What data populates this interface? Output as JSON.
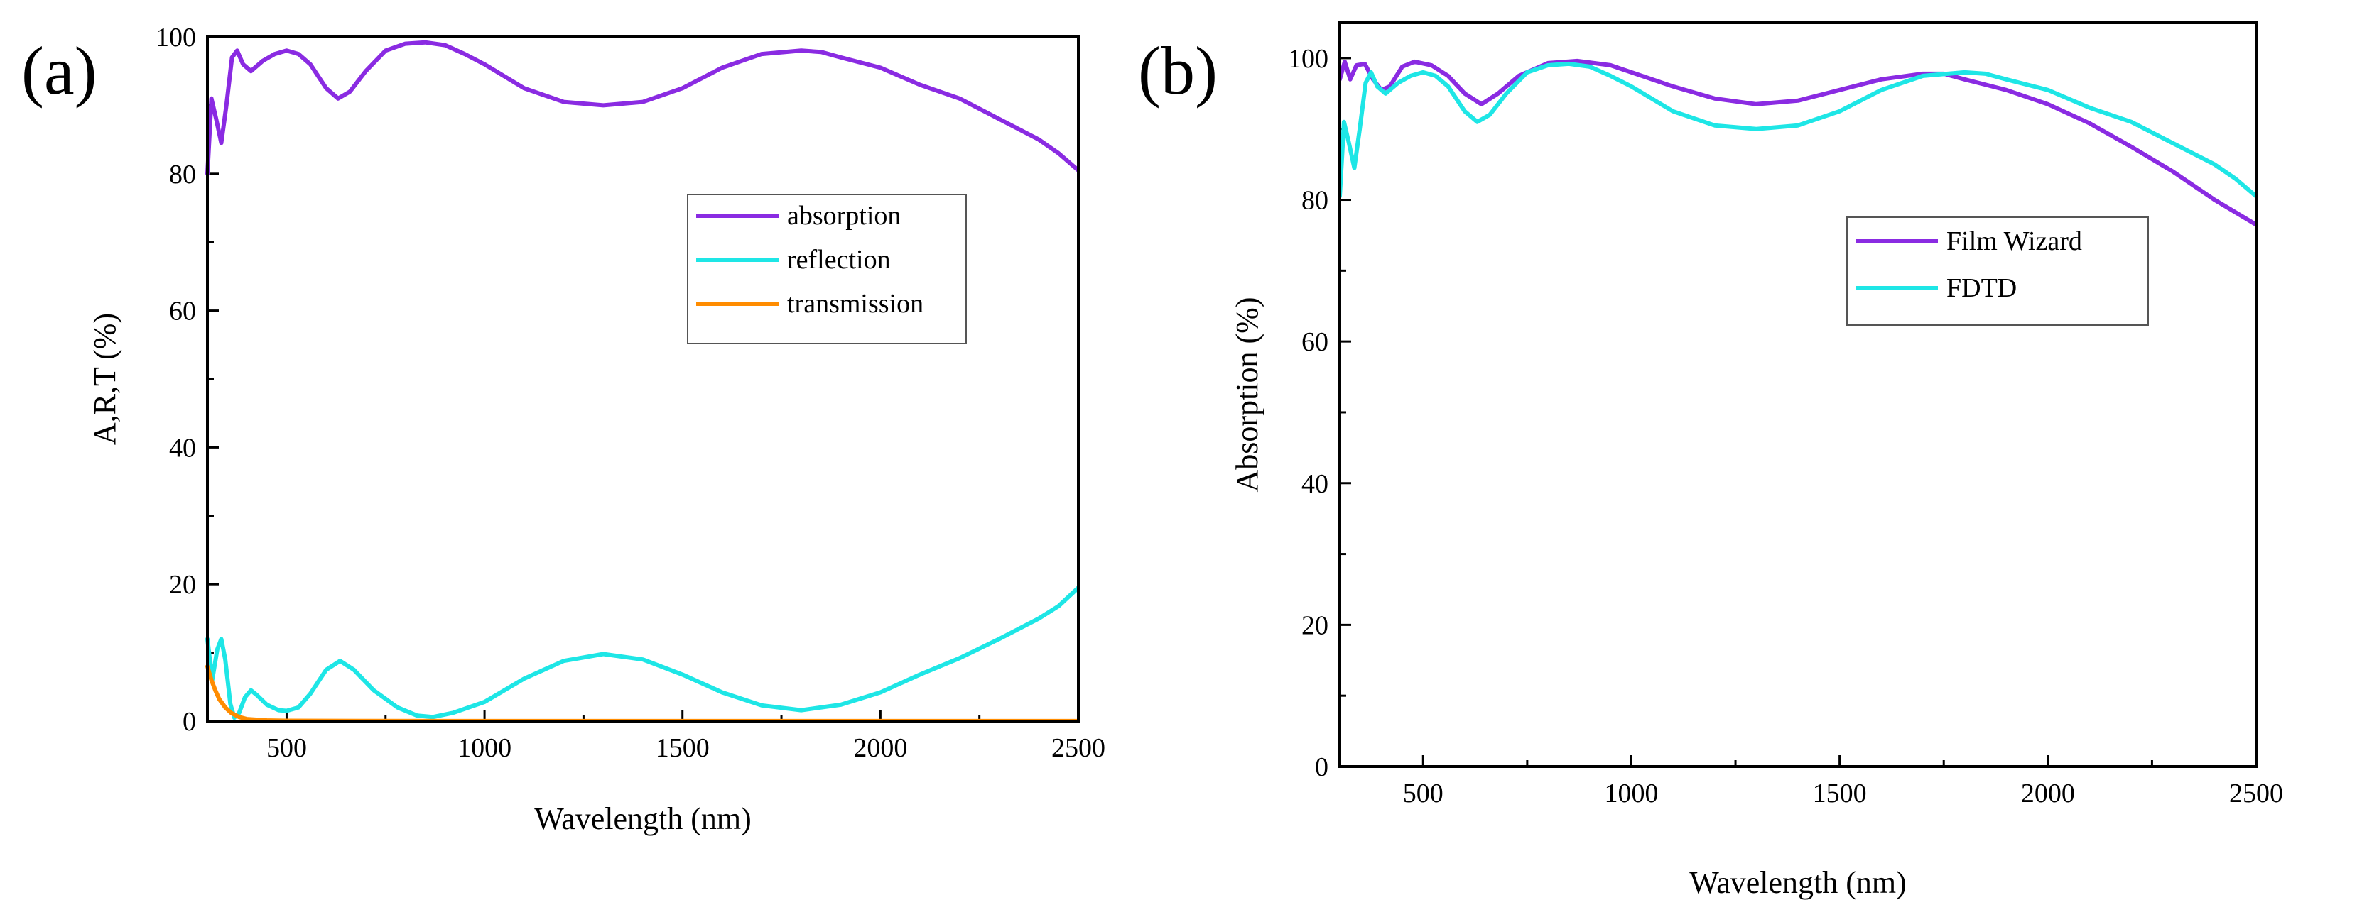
{
  "chart_data": [
    {
      "type": "line",
      "panel_label": "(a)",
      "title": "",
      "xlabel": "Wavelength (nm)",
      "ylabel": "A,R,T (%)",
      "xlim": [
        300,
        2500
      ],
      "ylim": [
        0,
        100
      ],
      "xticks": [
        500,
        1000,
        1500,
        2000,
        2500
      ],
      "yticks": [
        0,
        20,
        40,
        60,
        80,
        100
      ],
      "legend_position": "center-right",
      "series": [
        {
          "name": "absorption",
          "color": "#8a2be2",
          "points": [
            [
              300,
              80
            ],
            [
              310,
              91
            ],
            [
              322,
              88
            ],
            [
              335,
              84.5
            ],
            [
              348,
              90
            ],
            [
              362,
              97
            ],
            [
              375,
              98
            ],
            [
              390,
              96
            ],
            [
              410,
              95
            ],
            [
              440,
              96.5
            ],
            [
              470,
              97.5
            ],
            [
              500,
              98
            ],
            [
              530,
              97.5
            ],
            [
              560,
              96
            ],
            [
              600,
              92.5
            ],
            [
              630,
              91
            ],
            [
              660,
              92
            ],
            [
              700,
              95
            ],
            [
              750,
              98
            ],
            [
              800,
              99
            ],
            [
              850,
              99.2
            ],
            [
              900,
              98.8
            ],
            [
              950,
              97.5
            ],
            [
              1000,
              96
            ],
            [
              1100,
              92.5
            ],
            [
              1200,
              90.5
            ],
            [
              1300,
              90
            ],
            [
              1400,
              90.5
            ],
            [
              1500,
              92.5
            ],
            [
              1600,
              95.5
            ],
            [
              1700,
              97.5
            ],
            [
              1800,
              98
            ],
            [
              1850,
              97.8
            ],
            [
              1900,
              97
            ],
            [
              2000,
              95.5
            ],
            [
              2100,
              93
            ],
            [
              2200,
              91
            ],
            [
              2300,
              88
            ],
            [
              2400,
              85
            ],
            [
              2450,
              83
            ],
            [
              2500,
              80.5
            ]
          ]
        },
        {
          "name": "reflection",
          "color": "#1ee6e6",
          "points": [
            [
              300,
              12
            ],
            [
              312,
              6
            ],
            [
              325,
              10.5
            ],
            [
              335,
              12
            ],
            [
              345,
              9
            ],
            [
              358,
              2.5
            ],
            [
              368,
              0.5
            ],
            [
              380,
              1.2
            ],
            [
              395,
              3.5
            ],
            [
              410,
              4.5
            ],
            [
              425,
              3.8
            ],
            [
              450,
              2.4
            ],
            [
              480,
              1.6
            ],
            [
              500,
              1.5
            ],
            [
              530,
              2
            ],
            [
              560,
              4
            ],
            [
              600,
              7.5
            ],
            [
              635,
              8.8
            ],
            [
              670,
              7.5
            ],
            [
              720,
              4.5
            ],
            [
              780,
              2
            ],
            [
              830,
              0.8
            ],
            [
              870,
              0.6
            ],
            [
              920,
              1.2
            ],
            [
              1000,
              2.8
            ],
            [
              1100,
              6.2
            ],
            [
              1200,
              8.8
            ],
            [
              1300,
              9.8
            ],
            [
              1400,
              9
            ],
            [
              1500,
              6.8
            ],
            [
              1600,
              4.2
            ],
            [
              1700,
              2.3
            ],
            [
              1800,
              1.6
            ],
            [
              1900,
              2.4
            ],
            [
              2000,
              4.2
            ],
            [
              2100,
              6.8
            ],
            [
              2200,
              9.2
            ],
            [
              2300,
              12
            ],
            [
              2400,
              15
            ],
            [
              2450,
              16.8
            ],
            [
              2500,
              19.5
            ]
          ]
        },
        {
          "name": "transmission",
          "color": "#ff8c00",
          "points": [
            [
              300,
              8
            ],
            [
              310,
              6
            ],
            [
              320,
              4.5
            ],
            [
              330,
              3.2
            ],
            [
              345,
              2
            ],
            [
              360,
              1.2
            ],
            [
              380,
              0.6
            ],
            [
              400,
              0.3
            ],
            [
              450,
              0.1
            ],
            [
              500,
              0.05
            ],
            [
              700,
              0.02
            ],
            [
              1000,
              0.01
            ],
            [
              1500,
              0.01
            ],
            [
              2000,
              0.01
            ],
            [
              2500,
              0.01
            ]
          ]
        }
      ]
    },
    {
      "type": "line",
      "panel_label": "(b)",
      "title": "",
      "xlabel": "Wavelength (nm)",
      "ylabel": "Absorption (%)",
      "xlim": [
        300,
        2500
      ],
      "ylim": [
        0,
        105
      ],
      "xticks": [
        500,
        1000,
        1500,
        2000,
        2500
      ],
      "yticks": [
        0,
        20,
        40,
        60,
        80,
        100
      ],
      "legend_position": "center-right",
      "series": [
        {
          "name": "Film Wizard",
          "color": "#8a2be2",
          "points": [
            [
              300,
              97
            ],
            [
              312,
              99.5
            ],
            [
              325,
              97
            ],
            [
              340,
              99
            ],
            [
              360,
              99.2
            ],
            [
              380,
              97
            ],
            [
              400,
              95.5
            ],
            [
              420,
              96
            ],
            [
              450,
              98.8
            ],
            [
              480,
              99.5
            ],
            [
              520,
              99
            ],
            [
              560,
              97.5
            ],
            [
              600,
              95
            ],
            [
              640,
              93.5
            ],
            [
              680,
              95
            ],
            [
              730,
              97.5
            ],
            [
              800,
              99.3
            ],
            [
              870,
              99.6
            ],
            [
              950,
              99
            ],
            [
              1000,
              98
            ],
            [
              1100,
              96
            ],
            [
              1200,
              94.3
            ],
            [
              1300,
              93.5
            ],
            [
              1400,
              94
            ],
            [
              1500,
              95.5
            ],
            [
              1600,
              97
            ],
            [
              1700,
              97.8
            ],
            [
              1750,
              97.8
            ],
            [
              1800,
              97
            ],
            [
              1900,
              95.5
            ],
            [
              2000,
              93.5
            ],
            [
              2100,
              90.8
            ],
            [
              2200,
              87.5
            ],
            [
              2300,
              84
            ],
            [
              2400,
              80
            ],
            [
              2500,
              76.5
            ]
          ]
        },
        {
          "name": "FDTD",
          "color": "#1ee6e6",
          "points": [
            [
              300,
              80.5
            ],
            [
              310,
              91
            ],
            [
              322,
              88
            ],
            [
              335,
              84.5
            ],
            [
              348,
              90
            ],
            [
              362,
              96.5
            ],
            [
              375,
              98
            ],
            [
              390,
              96
            ],
            [
              410,
              95
            ],
            [
              440,
              96.5
            ],
            [
              470,
              97.5
            ],
            [
              500,
              98
            ],
            [
              530,
              97.5
            ],
            [
              560,
              96
            ],
            [
              600,
              92.5
            ],
            [
              630,
              91
            ],
            [
              660,
              92
            ],
            [
              700,
              95
            ],
            [
              750,
              98
            ],
            [
              800,
              99
            ],
            [
              850,
              99.2
            ],
            [
              900,
              98.8
            ],
            [
              950,
              97.5
            ],
            [
              1000,
              96
            ],
            [
              1100,
              92.5
            ],
            [
              1200,
              90.5
            ],
            [
              1300,
              90
            ],
            [
              1400,
              90.5
            ],
            [
              1500,
              92.5
            ],
            [
              1600,
              95.5
            ],
            [
              1700,
              97.5
            ],
            [
              1800,
              98
            ],
            [
              1850,
              97.8
            ],
            [
              1900,
              97
            ],
            [
              2000,
              95.5
            ],
            [
              2100,
              93
            ],
            [
              2200,
              91
            ],
            [
              2300,
              88
            ],
            [
              2400,
              85
            ],
            [
              2450,
              83
            ],
            [
              2500,
              80.5
            ]
          ]
        }
      ]
    }
  ]
}
